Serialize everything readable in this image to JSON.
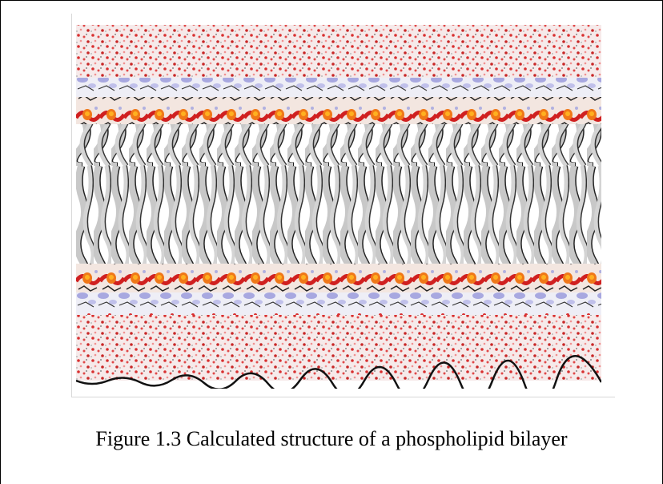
{
  "figure": {
    "caption": "Figure 1.3 Calculated structure of a phospholipid bilayer"
  }
}
